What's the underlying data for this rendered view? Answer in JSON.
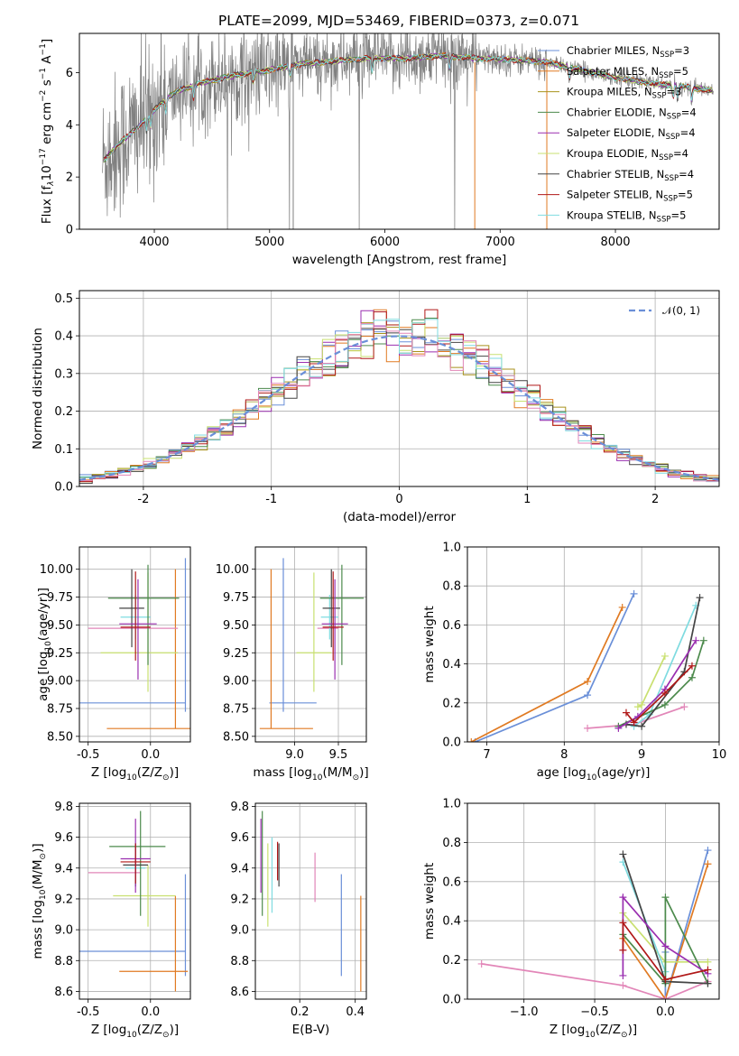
{
  "title": "PLATE=2099, MJD=53469, FIBERID=0373, z=0.071",
  "colors": {
    "Chabrier MILES": "#6a8fd8",
    "Salpeter MILES": "#e07a22",
    "Kroupa MILES": "#a8921c",
    "Chabrier ELODIE": "#4c8a4c",
    "Salpeter ELODIE": "#9a2fb0",
    "Kroupa ELODIE": "#c9e070",
    "Chabrier STELIB": "#444444",
    "Salpeter STELIB": "#b01818",
    "Kroupa STELIB": "#7fdbe0",
    "pink": "#e286b8",
    "observed": "#808080",
    "normal": "#6a8fd8",
    "grid": "#b0b0b0"
  },
  "legend": [
    {
      "prefix": "Chabrier MILES, N",
      "sub": "SSP",
      "suffix": "=3",
      "key": "Chabrier MILES"
    },
    {
      "prefix": "Salpeter MILES, N",
      "sub": "SSP",
      "suffix": "=5",
      "key": "Salpeter MILES"
    },
    {
      "prefix": "Kroupa MILES, N",
      "sub": "SSP",
      "suffix": "=3",
      "key": "Kroupa MILES"
    },
    {
      "prefix": "Chabrier ELODIE, N",
      "sub": "SSP",
      "suffix": "=4",
      "key": "Chabrier ELODIE"
    },
    {
      "prefix": "Salpeter ELODIE, N",
      "sub": "SSP",
      "suffix": "=4",
      "key": "Salpeter ELODIE"
    },
    {
      "prefix": "Kroupa ELODIE, N",
      "sub": "SSP",
      "suffix": "=4",
      "key": "Kroupa ELODIE"
    },
    {
      "prefix": "Chabrier STELIB, N",
      "sub": "SSP",
      "suffix": "=4",
      "key": "Chabrier STELIB"
    },
    {
      "prefix": "Salpeter STELIB, N",
      "sub": "SSP",
      "suffix": "=5",
      "key": "Salpeter STELIB"
    },
    {
      "prefix": "Kroupa STELIB, N",
      "sub": "SSP",
      "suffix": "=5",
      "key": "Kroupa STELIB"
    }
  ],
  "chart_data": [
    {
      "id": "spectrum",
      "type": "line",
      "xlabel": "wavelength [Angstrom, rest frame]",
      "ylabel_parts": [
        "Flux [f",
        "λ",
        "10",
        "−17",
        " erg cm",
        "−2",
        " s",
        "−1",
        " A",
        "−1",
        "]"
      ],
      "xlim": [
        3350,
        8900
      ],
      "ylim": [
        0,
        7.5
      ],
      "xticks": [
        4000,
        5000,
        6000,
        7000,
        8000
      ],
      "yticks": [
        0,
        2,
        4,
        6
      ],
      "continuum": [
        [
          3550,
          2.6
        ],
        [
          3700,
          3.3
        ],
        [
          3850,
          3.9
        ],
        [
          3950,
          4.3
        ],
        [
          4050,
          4.8
        ],
        [
          4200,
          5.3
        ],
        [
          4400,
          5.6
        ],
        [
          4700,
          5.9
        ],
        [
          5000,
          6.1
        ],
        [
          5300,
          6.35
        ],
        [
          5600,
          6.45
        ],
        [
          5900,
          6.55
        ],
        [
          6200,
          6.55
        ],
        [
          6500,
          6.65
        ],
        [
          6800,
          6.55
        ],
        [
          7100,
          6.5
        ],
        [
          7400,
          6.4
        ],
        [
          7700,
          6.1
        ],
        [
          8000,
          5.8
        ],
        [
          8300,
          5.6
        ],
        [
          8500,
          5.5
        ],
        [
          8700,
          5.4
        ],
        [
          8850,
          5.3
        ]
      ]
    },
    {
      "id": "residuals",
      "type": "bar",
      "xlabel": "(data-model)/error",
      "ylabel": "Normed distribution",
      "xlim": [
        -2.5,
        2.5
      ],
      "ylim": [
        0,
        0.52
      ],
      "xticks": [
        -2,
        -1,
        0,
        1,
        2
      ],
      "yticks": [
        0.0,
        0.1,
        0.2,
        0.3,
        0.4,
        0.5
      ],
      "legend_label": "𝒩(0, 1)",
      "bin_width": 0.1
    },
    {
      "id": "age-vs-Z",
      "type": "scatter",
      "xlabel_parts": [
        "Z [log",
        "10",
        "(Z/Z",
        "⊙",
        ")]"
      ],
      "ylabel_parts": [
        "age  [log",
        "10",
        "(age/yr)]"
      ],
      "xlim": [
        -0.57,
        0.32
      ],
      "ylim": [
        8.45,
        10.2
      ],
      "xticks": [
        -0.5,
        0.0
      ],
      "yticks": [
        8.5,
        8.75,
        9.0,
        9.25,
        9.5,
        9.75,
        10.0
      ],
      "ytick_labels": [
        "8.50",
        "8.75",
        "9.00",
        "9.25",
        "9.50",
        "9.75",
        "10.00"
      ],
      "points": [
        {
          "model": "Chabrier MILES",
          "x": 0.28,
          "y": 8.8,
          "xerr": [
            0.85,
            0.0
          ],
          "yerr": [
            0.08,
            1.3
          ]
        },
        {
          "model": "Salpeter MILES",
          "x": 0.2,
          "y": 8.57,
          "xerr": [
            0.55,
            0.12
          ],
          "yerr": [
            0.0,
            1.43
          ]
        },
        {
          "model": "Kroupa ELODIE",
          "x": -0.02,
          "y": 9.25,
          "xerr": [
            0.38,
            0.24
          ],
          "yerr": [
            0.35,
            0.72
          ]
        },
        {
          "model": "pink",
          "x": -0.2,
          "y": 9.47,
          "xerr": [
            0.3,
            0.42
          ],
          "yerr": [
            0.0,
            0.0
          ]
        },
        {
          "model": "Kroupa STELIB",
          "x": -0.12,
          "y": 9.57,
          "xerr": [
            0.12,
            0.12
          ],
          "yerr": [
            0.2,
            0.2
          ]
        },
        {
          "model": "Chabrier ELODIE",
          "x": -0.02,
          "y": 9.74,
          "xerr": [
            0.32,
            0.25
          ],
          "yerr": [
            0.6,
            0.3
          ]
        },
        {
          "model": "Chabrier STELIB",
          "x": -0.15,
          "y": 9.65,
          "xerr": [
            0.1,
            0.1
          ],
          "yerr": [
            0.35,
            0.35
          ]
        },
        {
          "model": "Salpeter ELODIE",
          "x": -0.1,
          "y": 9.51,
          "xerr": [
            0.15,
            0.15
          ],
          "yerr": [
            0.5,
            0.4
          ]
        },
        {
          "model": "Salpeter STELIB",
          "x": -0.12,
          "y": 9.48,
          "xerr": [
            0.12,
            0.12
          ],
          "yerr": [
            0.3,
            0.5
          ]
        }
      ]
    },
    {
      "id": "age-vs-mass",
      "type": "scatter",
      "xlabel_parts": [
        "mass [log",
        "10",
        "(M/M",
        "⊙",
        ")]"
      ],
      "ylabel": "",
      "xlim": [
        8.55,
        9.82
      ],
      "ylim": [
        8.45,
        10.2
      ],
      "xticks": [
        9.0,
        9.5
      ],
      "yticks": [
        8.5,
        8.75,
        9.0,
        9.25,
        9.5,
        9.75,
        10.0
      ],
      "ytick_labels": [
        "8.50",
        "8.75",
        "9.00",
        "9.25",
        "9.50",
        "9.75",
        "10.00"
      ],
      "points": [
        {
          "model": "Chabrier MILES",
          "x": 8.87,
          "y": 8.8,
          "xerr": [
            0.16,
            0.38
          ],
          "yerr": [
            0.08,
            1.3
          ]
        },
        {
          "model": "Salpeter MILES",
          "x": 8.73,
          "y": 8.57,
          "xerr": [
            0.13,
            0.48
          ],
          "yerr": [
            0.0,
            1.43
          ]
        },
        {
          "model": "Kroupa ELODIE",
          "x": 9.22,
          "y": 9.25,
          "xerr": [
            0.2,
            0.2
          ],
          "yerr": [
            0.35,
            0.72
          ]
        },
        {
          "model": "pink",
          "x": 9.38,
          "y": 9.47,
          "xerr": [
            0.12,
            0.12
          ],
          "yerr": [
            0.0,
            0.0
          ]
        },
        {
          "model": "Kroupa STELIB",
          "x": 9.4,
          "y": 9.57,
          "xerr": [
            0.1,
            0.1
          ],
          "yerr": [
            0.2,
            0.2
          ]
        },
        {
          "model": "Chabrier ELODIE",
          "x": 9.54,
          "y": 9.74,
          "xerr": [
            0.25,
            0.25
          ],
          "yerr": [
            0.6,
            0.3
          ]
        },
        {
          "model": "Chabrier STELIB",
          "x": 9.42,
          "y": 9.65,
          "xerr": [
            0.1,
            0.1
          ],
          "yerr": [
            0.35,
            0.35
          ]
        },
        {
          "model": "Salpeter ELODIE",
          "x": 9.46,
          "y": 9.51,
          "xerr": [
            0.15,
            0.15
          ],
          "yerr": [
            0.5,
            0.4
          ]
        },
        {
          "model": "Salpeter STELIB",
          "x": 9.44,
          "y": 9.48,
          "xerr": [
            0.12,
            0.12
          ],
          "yerr": [
            0.3,
            0.5
          ]
        }
      ]
    },
    {
      "id": "weight-vs-age",
      "type": "line",
      "xlabel_parts": [
        "age  [log",
        "10",
        "(age/yr)]"
      ],
      "ylabel": "mass weight",
      "xlim": [
        6.75,
        10.0
      ],
      "ylim": [
        0,
        1.0
      ],
      "xticks": [
        7,
        8,
        9,
        10
      ],
      "yticks": [
        0.0,
        0.2,
        0.4,
        0.6,
        0.8,
        1.0
      ],
      "series": [
        {
          "model": "Chabrier MILES",
          "x": [
            6.85,
            8.3,
            8.9
          ],
          "y": [
            0.0,
            0.24,
            0.76
          ]
        },
        {
          "model": "Salpeter MILES",
          "x": [
            6.8,
            8.3,
            8.75
          ],
          "y": [
            0.0,
            0.31,
            0.69
          ]
        },
        {
          "model": "Kroupa ELODIE",
          "x": [
            8.95,
            9.0,
            9.3
          ],
          "y": [
            0.18,
            0.19,
            0.44
          ]
        },
        {
          "model": "pink",
          "x": [
            8.3,
            8.9,
            9.55
          ],
          "y": [
            0.07,
            0.09,
            0.18
          ]
        },
        {
          "model": "Kroupa STELIB",
          "x": [
            8.9,
            9.1,
            9.7
          ],
          "y": [
            0.08,
            0.14,
            0.7
          ]
        },
        {
          "model": "Chabrier ELODIE",
          "x": [
            8.7,
            9.3,
            9.65,
            9.8
          ],
          "y": [
            0.08,
            0.19,
            0.33,
            0.52
          ]
        },
        {
          "model": "Chabrier STELIB",
          "x": [
            8.8,
            9.0,
            9.55,
            9.75
          ],
          "y": [
            0.09,
            0.08,
            0.36,
            0.74
          ]
        },
        {
          "model": "Salpeter ELODIE",
          "x": [
            8.7,
            8.95,
            9.3,
            9.7
          ],
          "y": [
            0.07,
            0.13,
            0.27,
            0.52
          ]
        },
        {
          "model": "Salpeter STELIB",
          "x": [
            8.8,
            8.9,
            9.3,
            9.65
          ],
          "y": [
            0.15,
            0.1,
            0.25,
            0.39
          ]
        }
      ]
    },
    {
      "id": "mass-vs-Z",
      "type": "scatter",
      "xlabel_parts": [
        "Z [log",
        "10",
        "(Z/Z",
        "⊙",
        ")]"
      ],
      "ylabel_parts": [
        "mass [log",
        "10",
        "(M/M",
        "⊙",
        ")]"
      ],
      "xlim": [
        -0.57,
        0.32
      ],
      "ylim": [
        8.55,
        9.82
      ],
      "xticks": [
        -0.5,
        0.0
      ],
      "yticks": [
        8.6,
        8.8,
        9.0,
        9.2,
        9.4,
        9.6,
        9.8
      ],
      "ytick_labels": [
        "8.6",
        "8.8",
        "9.0",
        "9.2",
        "9.4",
        "9.6",
        "9.8"
      ],
      "points": [
        {
          "model": "Chabrier MILES",
          "x": 0.28,
          "y": 8.86,
          "xerr": [
            0.85,
            0.0
          ],
          "yerr": [
            0.16,
            0.5
          ]
        },
        {
          "model": "Salpeter MILES",
          "x": 0.2,
          "y": 8.73,
          "xerr": [
            0.45,
            0.1
          ],
          "yerr": [
            0.13,
            0.49
          ]
        },
        {
          "model": "Kroupa ELODIE",
          "x": -0.02,
          "y": 9.22,
          "xerr": [
            0.28,
            0.22
          ],
          "yerr": [
            0.2,
            0.2
          ]
        },
        {
          "model": "pink",
          "x": -0.2,
          "y": 9.37,
          "xerr": [
            0.3,
            0.12
          ],
          "yerr": [
            0.0,
            0.0
          ]
        },
        {
          "model": "Kroupa STELIB",
          "x": -0.12,
          "y": 9.4,
          "xerr": [
            0.08,
            0.08
          ],
          "yerr": [
            0.12,
            0.12
          ]
        },
        {
          "model": "Chabrier ELODIE",
          "x": -0.08,
          "y": 9.54,
          "xerr": [
            0.25,
            0.2
          ],
          "yerr": [
            0.45,
            0.23
          ]
        },
        {
          "model": "Chabrier STELIB",
          "x": -0.12,
          "y": 9.42,
          "xerr": [
            0.1,
            0.1
          ],
          "yerr": [
            0.14,
            0.14
          ]
        },
        {
          "model": "Salpeter ELODIE",
          "x": -0.12,
          "y": 9.46,
          "xerr": [
            0.12,
            0.12
          ],
          "yerr": [
            0.22,
            0.26
          ]
        },
        {
          "model": "Salpeter STELIB",
          "x": -0.12,
          "y": 9.44,
          "xerr": [
            0.12,
            0.12
          ],
          "yerr": [
            0.14,
            0.12
          ]
        }
      ]
    },
    {
      "id": "mass-vs-ebv",
      "type": "scatter",
      "xlabel": "E(B-V)",
      "ylabel": "",
      "xlim": [
        0.04,
        0.44
      ],
      "ylim": [
        8.55,
        9.82
      ],
      "xticks": [
        0.2,
        0.4
      ],
      "ytick_labels": [
        "8.6",
        "8.8",
        "9.0",
        "9.2",
        "9.4",
        "9.6",
        "9.8"
      ],
      "yticks": [
        8.6,
        8.8,
        9.0,
        9.2,
        9.4,
        9.6,
        9.8
      ],
      "segments": [
        {
          "model": "Salpeter ELODIE",
          "x": 0.06,
          "y0": 9.24,
          "y1": 9.72
        },
        {
          "model": "Chabrier ELODIE",
          "x": 0.065,
          "y0": 9.09,
          "y1": 9.77
        },
        {
          "model": "Kroupa ELODIE",
          "x": 0.085,
          "y0": 9.02,
          "y1": 9.56
        },
        {
          "model": "Kroupa STELIB",
          "x": 0.1,
          "y0": 9.11,
          "y1": 9.6
        },
        {
          "model": "Salpeter STELIB",
          "x": 0.12,
          "y0": 9.32,
          "y1": 9.57
        },
        {
          "model": "Chabrier STELIB",
          "x": 0.125,
          "y0": 9.28,
          "y1": 9.56
        },
        {
          "model": "pink",
          "x": 0.255,
          "y0": 9.18,
          "y1": 9.5
        },
        {
          "model": "Chabrier MILES",
          "x": 0.35,
          "y0": 8.7,
          "y1": 9.36
        },
        {
          "model": "Salpeter MILES",
          "x": 0.42,
          "y0": 8.6,
          "y1": 9.22
        }
      ]
    },
    {
      "id": "weight-vs-Z",
      "type": "line",
      "xlabel_parts": [
        "Z [log",
        "10",
        "(Z/Z",
        "⊙",
        ")]"
      ],
      "ylabel": "mass weight",
      "xlim": [
        -1.4,
        0.38
      ],
      "ylim": [
        0,
        1.0
      ],
      "xticks": [
        -1.0,
        -0.5,
        0.0
      ],
      "xtick_labels": [
        "−1.0",
        "−0.5",
        "0.0"
      ],
      "yticks": [
        0.0,
        0.2,
        0.4,
        0.6,
        0.8,
        1.0
      ],
      "series": [
        {
          "model": "Chabrier MILES",
          "x": [
            0.0,
            0.0,
            0.3
          ],
          "y": [
            0.24,
            0.0,
            0.76
          ]
        },
        {
          "model": "Salpeter MILES",
          "x": [
            -0.3,
            0.0,
            0.3
          ],
          "y": [
            0.31,
            0.0,
            0.69
          ]
        },
        {
          "model": "pink",
          "x": [
            -1.3,
            -0.3,
            0.0,
            0.3
          ],
          "y": [
            0.18,
            0.07,
            0.0,
            0.09
          ]
        },
        {
          "model": "Kroupa ELODIE",
          "x": [
            -0.3,
            0.0,
            0.3
          ],
          "y": [
            0.44,
            0.19,
            0.19
          ]
        },
        {
          "model": "Kroupa STELIB",
          "x": [
            -0.3,
            0.0,
            0.0
          ],
          "y": [
            0.7,
            0.14,
            0.08
          ]
        },
        {
          "model": "Chabrier ELODIE",
          "x": [
            -0.3,
            0.0,
            0.0,
            0.3
          ],
          "y": [
            0.33,
            0.08,
            0.52,
            0.08
          ]
        },
        {
          "model": "Chabrier STELIB",
          "x": [
            -0.3,
            0.0,
            0.3
          ],
          "y": [
            0.74,
            0.09,
            0.08
          ]
        },
        {
          "model": "Salpeter ELODIE",
          "x": [
            -0.3,
            -0.3,
            0.0,
            0.3
          ],
          "y": [
            0.12,
            0.52,
            0.27,
            0.13
          ]
        },
        {
          "model": "Salpeter STELIB",
          "x": [
            -0.3,
            -0.3,
            0.0,
            0.3
          ],
          "y": [
            0.25,
            0.39,
            0.1,
            0.15
          ]
        }
      ]
    }
  ]
}
